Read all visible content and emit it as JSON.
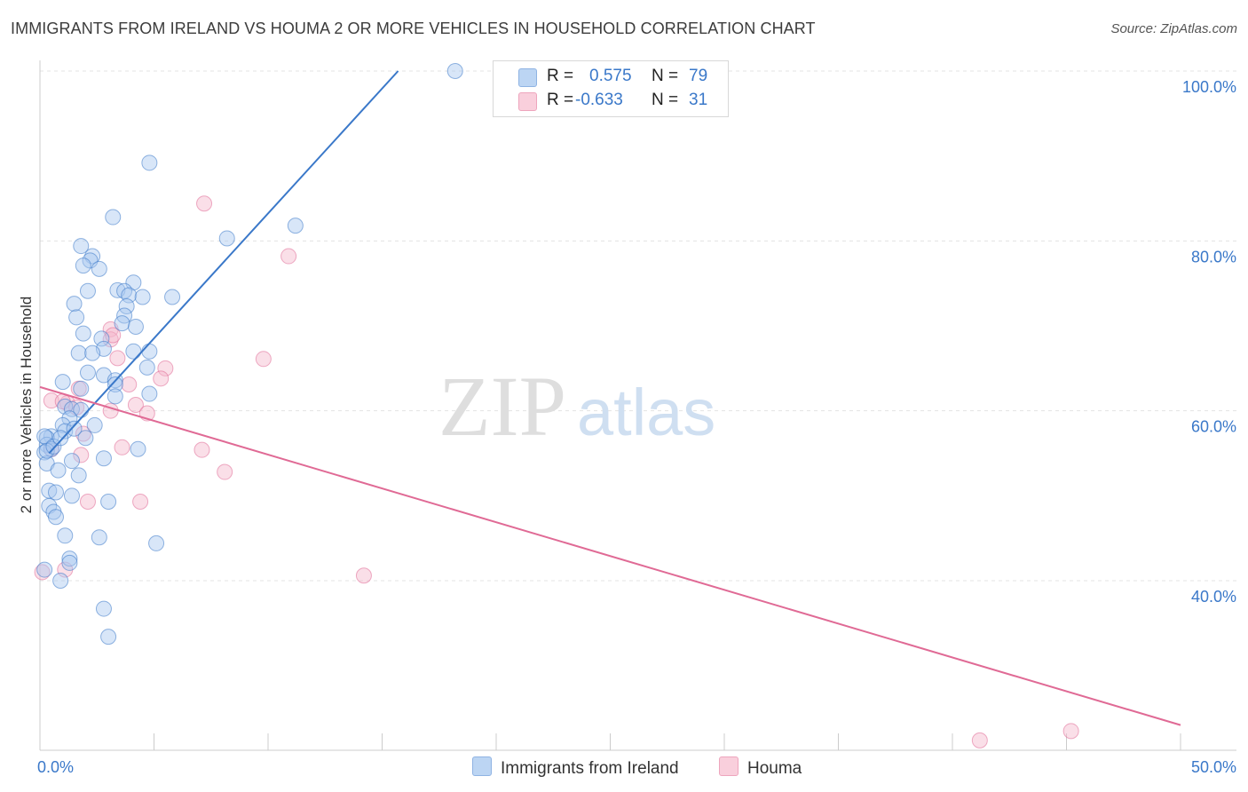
{
  "header": {
    "title": "IMMIGRANTS FROM IRELAND VS HOUMA 2 OR MORE VEHICLES IN HOUSEHOLD CORRELATION CHART",
    "source": "Source: ZipAtlas.com"
  },
  "watermark": {
    "zip": "ZIP",
    "atlas": "atlas"
  },
  "legend": {
    "r_label": "R =",
    "n_label": "N =",
    "rows": [
      {
        "r": " 0.575",
        "n": "79",
        "color": "#a9c8ef"
      },
      {
        "r": "-0.633",
        "n": "31",
        "color": "#f5b8cb"
      }
    ]
  },
  "bottom_legend": [
    "Immigrants from Ireland",
    "Houma"
  ],
  "chart_data": {
    "type": "scatter",
    "title": "IMMIGRANTS FROM IRELAND VS HOUMA 2 OR MORE VEHICLES IN HOUSEHOLD CORRELATION CHART",
    "xlabel": "",
    "ylabel": "2 or more Vehicles in Household",
    "xlim": [
      0,
      50
    ],
    "ylim": [
      22,
      100
    ],
    "x_tick_labels": [
      "0.0%",
      "50.0%"
    ],
    "y_ticks": [
      40,
      60,
      80,
      100
    ],
    "y_tick_labels": [
      "40.0%",
      "60.0%",
      "80.0%",
      "100.0%"
    ],
    "grid": true,
    "legend_position": "top-center",
    "colors": {
      "ireland": "#a9c8ef",
      "ireland_line": "#3a78c9",
      "houma": "#f5b8cb",
      "houma_line": "#e06a95"
    },
    "series": [
      {
        "name": "Immigrants from Ireland",
        "r": 0.575,
        "n": 79,
        "trend": {
          "x": [
            0.4,
            15.7
          ],
          "y": [
            55.0,
            100.0
          ]
        },
        "points": [
          [
            18.2,
            100.0
          ],
          [
            4.8,
            89.2
          ],
          [
            3.2,
            82.8
          ],
          [
            11.2,
            81.8
          ],
          [
            8.2,
            80.3
          ],
          [
            1.8,
            79.4
          ],
          [
            2.3,
            78.2
          ],
          [
            2.2,
            77.7
          ],
          [
            1.9,
            77.1
          ],
          [
            2.6,
            76.7
          ],
          [
            4.1,
            75.1
          ],
          [
            3.4,
            74.2
          ],
          [
            2.1,
            74.1
          ],
          [
            3.7,
            74.1
          ],
          [
            3.9,
            73.6
          ],
          [
            4.5,
            73.4
          ],
          [
            5.8,
            73.4
          ],
          [
            1.5,
            72.6
          ],
          [
            3.8,
            72.3
          ],
          [
            3.7,
            71.2
          ],
          [
            1.6,
            71.0
          ],
          [
            3.6,
            70.3
          ],
          [
            4.2,
            69.9
          ],
          [
            1.9,
            69.1
          ],
          [
            2.7,
            68.5
          ],
          [
            2.8,
            67.3
          ],
          [
            4.1,
            67.0
          ],
          [
            4.8,
            67.0
          ],
          [
            1.7,
            66.8
          ],
          [
            2.3,
            66.8
          ],
          [
            4.7,
            65.1
          ],
          [
            2.1,
            64.5
          ],
          [
            2.8,
            64.2
          ],
          [
            3.3,
            63.6
          ],
          [
            1.0,
            63.4
          ],
          [
            3.3,
            63.1
          ],
          [
            1.8,
            62.6
          ],
          [
            4.8,
            62.0
          ],
          [
            3.3,
            61.7
          ],
          [
            1.1,
            60.5
          ],
          [
            1.4,
            60.2
          ],
          [
            1.8,
            60.1
          ],
          [
            1.3,
            59.1
          ],
          [
            1.0,
            58.3
          ],
          [
            2.4,
            58.3
          ],
          [
            1.1,
            57.6
          ],
          [
            0.5,
            57.0
          ],
          [
            0.3,
            56.8
          ],
          [
            2.0,
            56.8
          ],
          [
            0.3,
            56.0
          ],
          [
            0.5,
            55.5
          ],
          [
            0.2,
            55.1
          ],
          [
            4.3,
            55.5
          ],
          [
            2.8,
            54.4
          ],
          [
            1.4,
            54.1
          ],
          [
            0.3,
            53.8
          ],
          [
            0.8,
            53.0
          ],
          [
            1.7,
            52.4
          ],
          [
            0.4,
            50.6
          ],
          [
            0.7,
            50.4
          ],
          [
            1.4,
            50.0
          ],
          [
            3.0,
            49.3
          ],
          [
            0.4,
            48.8
          ],
          [
            0.6,
            48.1
          ],
          [
            0.7,
            47.5
          ],
          [
            1.1,
            45.3
          ],
          [
            2.6,
            45.1
          ],
          [
            5.1,
            44.4
          ],
          [
            1.3,
            42.6
          ],
          [
            1.3,
            42.1
          ],
          [
            0.2,
            41.3
          ],
          [
            0.9,
            40.0
          ],
          [
            2.8,
            36.7
          ],
          [
            3.0,
            33.4
          ],
          [
            0.3,
            55.3
          ],
          [
            0.2,
            57.0
          ],
          [
            1.5,
            57.9
          ],
          [
            0.6,
            55.8
          ],
          [
            0.9,
            56.8
          ]
        ]
      },
      {
        "name": "Houma",
        "r": -0.633,
        "n": 31,
        "trend": {
          "x": [
            0.0,
            50.0
          ],
          "y": [
            62.8,
            23.0
          ]
        },
        "points": [
          [
            7.2,
            84.4
          ],
          [
            10.9,
            78.2
          ],
          [
            3.1,
            69.6
          ],
          [
            3.1,
            68.4
          ],
          [
            3.2,
            68.9
          ],
          [
            9.8,
            66.1
          ],
          [
            3.4,
            66.2
          ],
          [
            5.5,
            65.0
          ],
          [
            5.3,
            63.8
          ],
          [
            3.9,
            63.1
          ],
          [
            1.7,
            62.6
          ],
          [
            0.5,
            61.2
          ],
          [
            1.2,
            60.9
          ],
          [
            1.0,
            61.1
          ],
          [
            4.2,
            60.7
          ],
          [
            1.6,
            60.4
          ],
          [
            3.1,
            60.0
          ],
          [
            4.7,
            59.7
          ],
          [
            1.9,
            57.3
          ],
          [
            3.6,
            55.7
          ],
          [
            7.1,
            55.4
          ],
          [
            0.5,
            55.5
          ],
          [
            1.8,
            54.8
          ],
          [
            8.1,
            52.8
          ],
          [
            2.1,
            49.3
          ],
          [
            4.4,
            49.3
          ],
          [
            0.1,
            41.0
          ],
          [
            1.1,
            41.3
          ],
          [
            14.2,
            40.6
          ],
          [
            41.2,
            21.2
          ],
          [
            45.2,
            22.3
          ]
        ]
      }
    ]
  }
}
